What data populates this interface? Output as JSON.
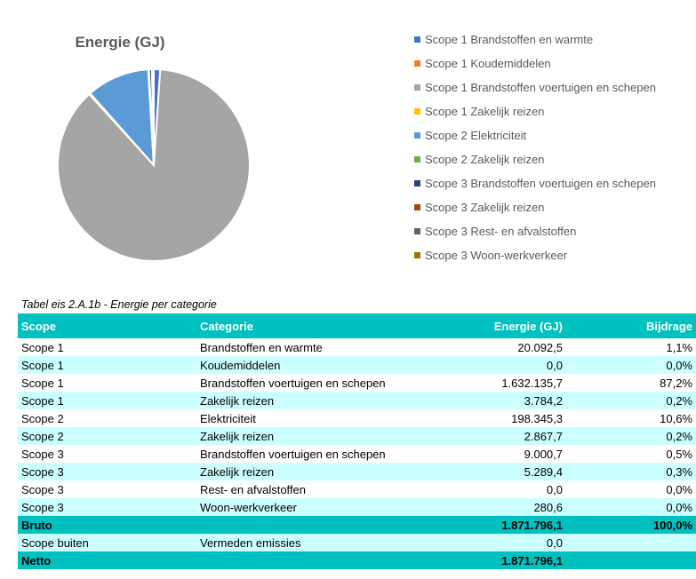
{
  "chart_data": {
    "type": "pie",
    "title": "Energie (GJ)",
    "categories": [
      "Scope 1 Brandstoffen en warmte",
      "Scope 1 Koudemiddelen",
      "Scope 1 Brandstoffen voertuigen en schepen",
      "Scope 1 Zakelijk reizen",
      "Scope 2 Elektriciteit",
      "Scope 2 Zakelijk reizen",
      "Scope 3 Brandstoffen voertuigen en schepen",
      "Scope 3 Zakelijk reizen",
      "Scope 3 Rest- en afvalstoffen",
      "Scope 3 Woon-werkverkeer"
    ],
    "values": [
      20092.5,
      0.0,
      1632135.7,
      3784.2,
      198345.3,
      2867.7,
      9000.7,
      5289.4,
      0.0,
      280.6
    ],
    "colors": [
      "#4472c4",
      "#ed7d31",
      "#a5a5a5",
      "#ffc000",
      "#5b9bd5",
      "#70ad47",
      "#264478",
      "#9e480e",
      "#636363",
      "#997300"
    ],
    "legend_position": "right"
  },
  "table": {
    "caption": "Tabel eis 2.A.1b - Energie per categorie",
    "headers": [
      "Scope",
      "Categorie",
      "Energie (GJ)",
      "Bijdrage"
    ],
    "rows": [
      [
        "Scope 1",
        "Brandstoffen en warmte",
        "20.092,5",
        "1,1%"
      ],
      [
        "Scope 1",
        "Koudemiddelen",
        "0,0",
        "0,0%"
      ],
      [
        "Scope 1",
        "Brandstoffen voertuigen en schepen",
        "1.632.135,7",
        "87,2%"
      ],
      [
        "Scope 1",
        "Zakelijk reizen",
        "3.784,2",
        "0,2%"
      ],
      [
        "Scope 2",
        "Elektriciteit",
        "198.345,3",
        "10,6%"
      ],
      [
        "Scope 2",
        "Zakelijk reizen",
        "2.867,7",
        "0,2%"
      ],
      [
        "Scope 3",
        "Brandstoffen voertuigen en schepen",
        "9.000,7",
        "0,5%"
      ],
      [
        "Scope 3",
        "Zakelijk reizen",
        "5.289,4",
        "0,3%"
      ],
      [
        "Scope 3",
        "Rest- en afvalstoffen",
        "0,0",
        "0,0%"
      ],
      [
        "Scope 3",
        "Woon-werkverkeer",
        "280,6",
        "0,0%"
      ]
    ],
    "bruto": [
      "Bruto",
      "",
      "1.871.796,1",
      "100,0%"
    ],
    "buiten": [
      "Scope buiten",
      "Vermeden emissies",
      "0,0",
      ""
    ],
    "netto": [
      "Netto",
      "",
      "1.871.796,1",
      ""
    ]
  }
}
